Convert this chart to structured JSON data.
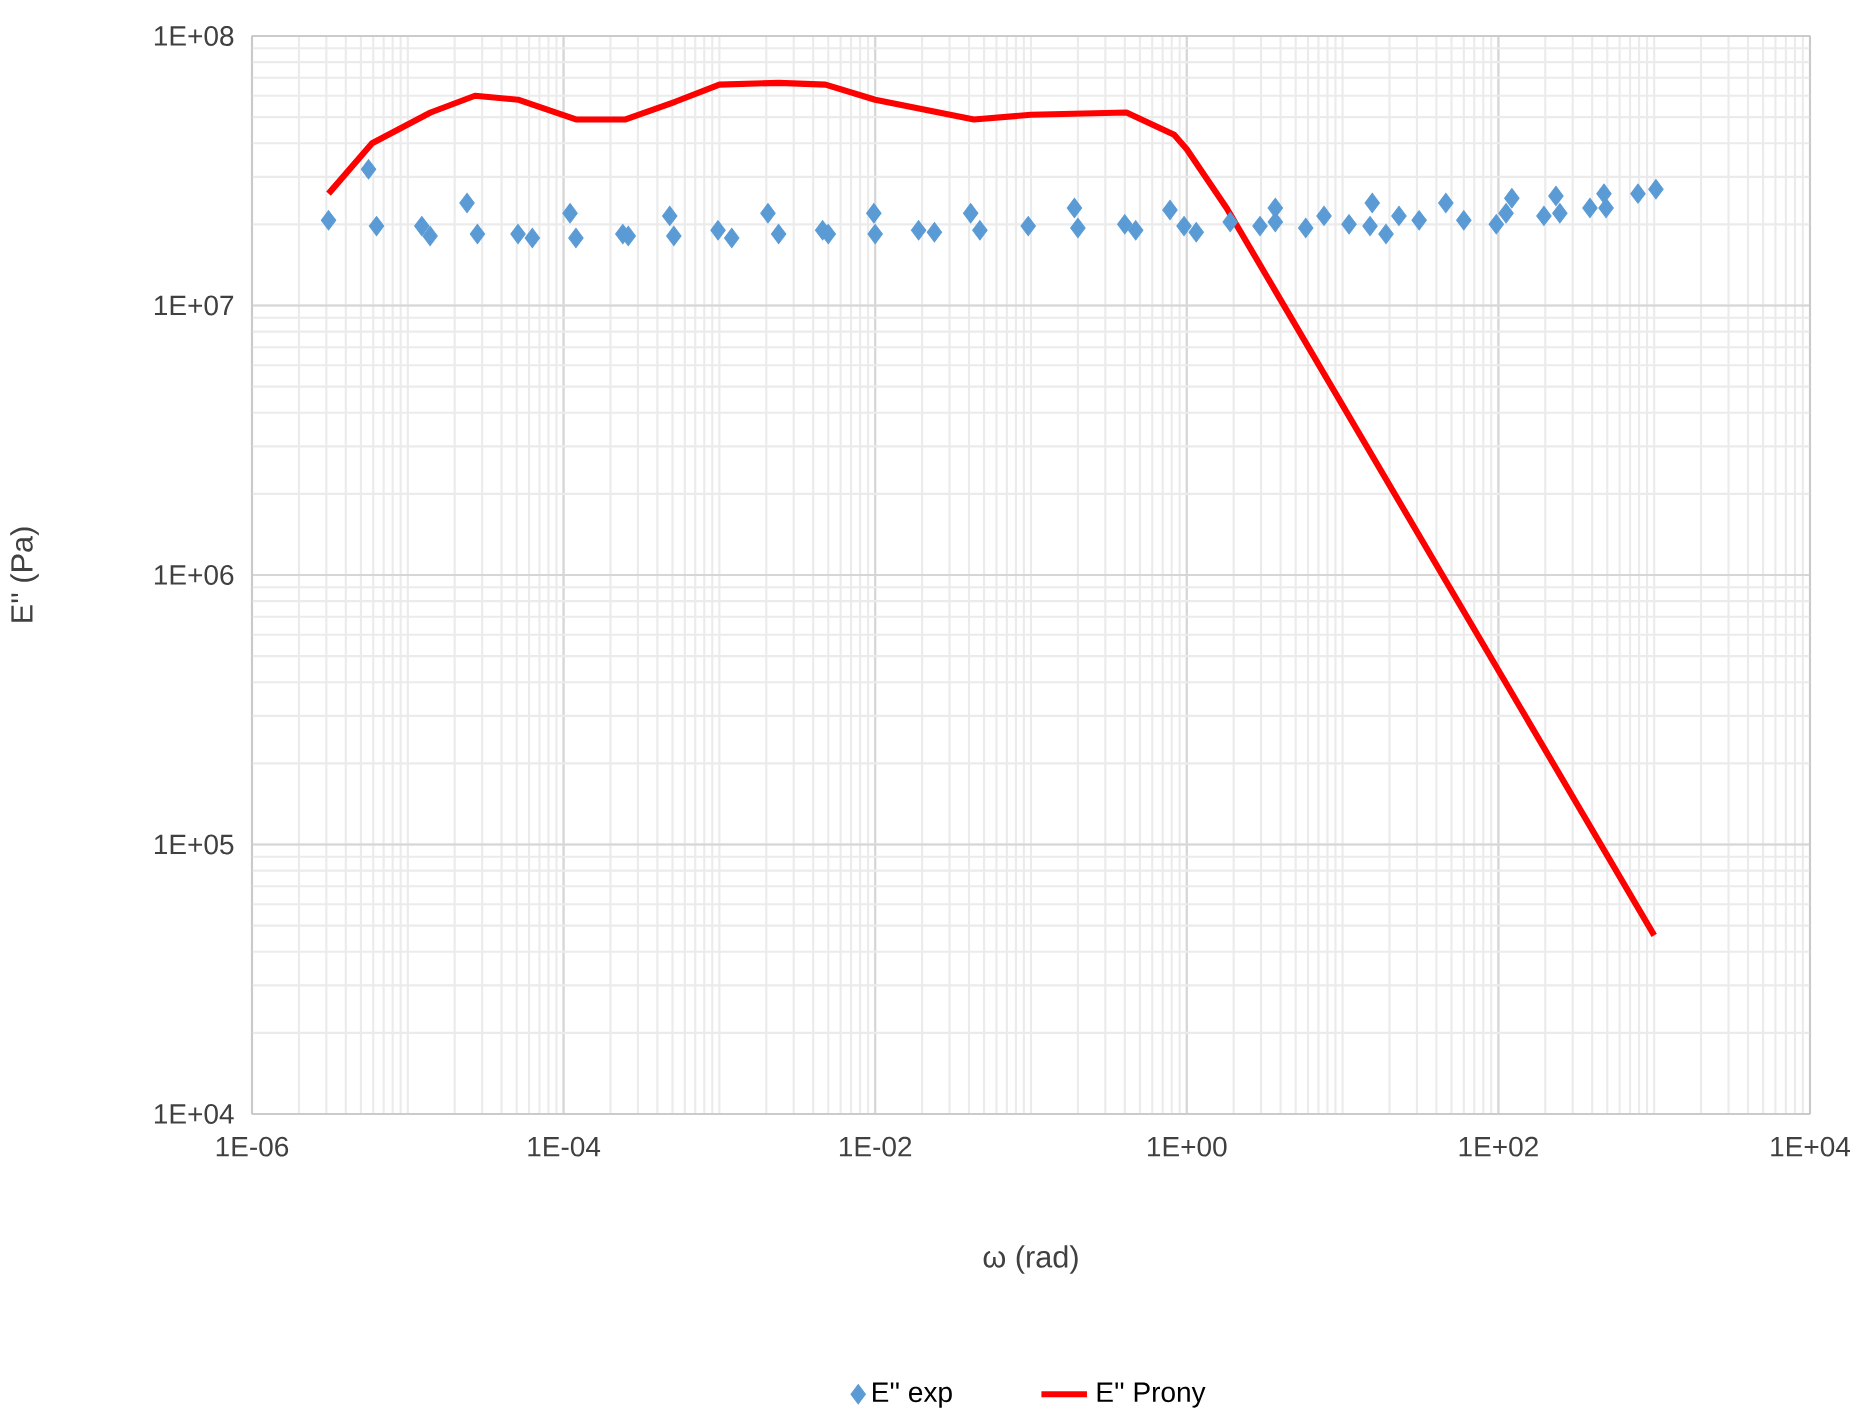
{
  "chart_data": {
    "type": "scatter",
    "xlabel": "ω (rad)",
    "ylabel": "E'' (Pa)",
    "log": "xy",
    "grid": true,
    "legend": "bottom",
    "xlim": [
      1e-06,
      10000.0
    ],
    "ylim": [
      10000.0,
      100000000.0
    ],
    "xticks": [
      {
        "value": 1e-06,
        "label": "1E-06"
      },
      {
        "value": 0.0001,
        "label": "1E-04"
      },
      {
        "value": 0.01,
        "label": "1E-02"
      },
      {
        "value": 1,
        "label": "1E+00"
      },
      {
        "value": 100,
        "label": "1E+02"
      },
      {
        "value": 10000.0,
        "label": "1E+04"
      }
    ],
    "yticks": [
      {
        "value": 10000.0,
        "label": "1E+04"
      },
      {
        "value": 100000.0,
        "label": "1E+05"
      },
      {
        "value": 1000000.0,
        "label": "1E+06"
      },
      {
        "value": 10000000.0,
        "label": "1E+07"
      },
      {
        "value": 100000000.0,
        "label": "1E+08"
      }
    ],
    "series": [
      {
        "name": "E'' exp",
        "marker": "diamond",
        "color": "#5b9bd5",
        "x": [
          3.1e-06,
          5.6e-06,
          6.3e-06,
          1.23e-05,
          1.39e-05,
          2.4e-05,
          2.8e-05,
          5.1e-05,
          6.3e-05,
          0.00011,
          0.00012,
          0.00024,
          0.00026,
          0.00048,
          0.00051,
          0.00098,
          0.0012,
          0.00205,
          0.0024,
          0.0046,
          0.005,
          0.0098,
          0.01,
          0.019,
          0.024,
          0.041,
          0.047,
          0.096,
          0.19,
          0.2,
          0.4,
          0.47,
          0.78,
          0.96,
          1.15,
          1.9,
          2.95,
          3.7,
          3.7,
          5.8,
          7.6,
          11,
          15,
          15.5,
          19,
          23,
          31,
          46,
          60,
          97,
          112,
          122,
          196,
          234,
          248,
          387,
          476,
          491,
          787,
          1026
        ],
        "values": [
          20700000.0,
          32000000.0,
          19700000.0,
          19700000.0,
          18100000.0,
          24000000.0,
          18400000.0,
          18400000.0,
          17800000.0,
          22000000.0,
          17800000.0,
          18400000.0,
          18100000.0,
          21500000.0,
          18100000.0,
          19000000.0,
          17800000.0,
          22000000.0,
          18400000.0,
          19000000.0,
          18400000.0,
          22000000.0,
          18400000.0,
          19000000.0,
          18700000.0,
          22000000.0,
          19000000.0,
          19700000.0,
          23000000.0,
          19400000.0,
          20000000.0,
          19000000.0,
          22600000.0,
          19700000.0,
          18700000.0,
          20400000.0,
          19700000.0,
          23000000.0,
          20400000.0,
          19400000.0,
          21500000.0,
          20000000.0,
          19700000.0,
          24000000.0,
          18400000.0,
          21500000.0,
          20700000.0,
          24000000.0,
          20700000.0,
          20000000.0,
          22000000.0,
          25000000.0,
          21500000.0,
          25500000.0,
          22000000.0,
          23000000.0,
          26000000.0,
          23000000.0,
          26000000.0,
          27000000.0
        ]
      },
      {
        "name": "E'' Prony",
        "type": "line",
        "marker": "none",
        "line_style": "solid",
        "color": "#ff0000",
        "x": [
          3.1e-06,
          5.9e-06,
          1.4e-05,
          2.7e-05,
          5.1e-05,
          0.00012,
          0.00025,
          0.00052,
          0.001,
          0.0024,
          0.0048,
          0.01,
          0.043,
          0.1,
          0.41,
          0.83,
          1.0,
          1.8,
          1000
        ],
        "values": [
          26000000.0,
          40000000.0,
          52000000.0,
          60000000.0,
          58000000.0,
          49000000.0,
          49000000.0,
          57000000.0,
          66000000.0,
          67000000.0,
          66000000.0,
          58000000.0,
          49000000.0,
          51000000.0,
          52000000.0,
          43000000.0,
          38000000.0,
          23000000.0,
          46000.0
        ]
      }
    ]
  }
}
